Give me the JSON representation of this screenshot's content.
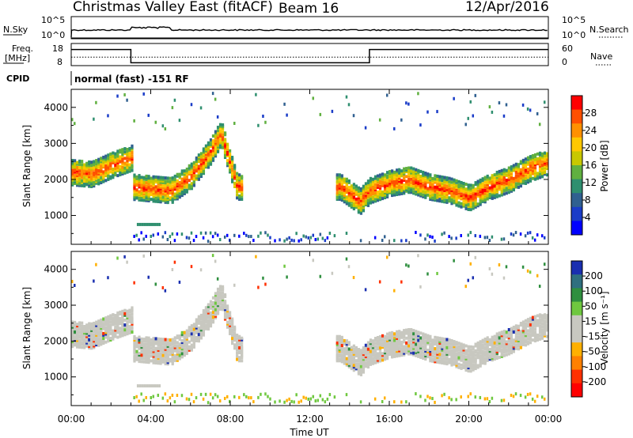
{
  "header": {
    "title": "Christmas Valley East (fitACF)",
    "beam": "Beam 16",
    "date": "12/Apr/2016"
  },
  "nsky_panel": {
    "left_label": "N.Sky",
    "left_ticks": [
      "10^5",
      "10^0"
    ],
    "right_label": "N.Search",
    "right_ticks": [
      "10^5",
      "10^0"
    ]
  },
  "freq_panel": {
    "left_label_1": "Freq.",
    "left_label_2": "[MHz]",
    "left_ticks": [
      "18",
      "8"
    ],
    "right_label": "Nave",
    "right_ticks": [
      "60",
      "0"
    ]
  },
  "cpid": {
    "label": "CPID",
    "text": "normal (fast) -151 RF"
  },
  "colorbars": {
    "power": {
      "label": "Power [dB]",
      "ticks": [
        "28",
        "24",
        "20",
        "16",
        "12",
        "8",
        "4"
      ],
      "colors": [
        "#ff0000",
        "#ff5000",
        "#ff9000",
        "#ffc800",
        "#c8c800",
        "#60b040",
        "#2f8f6f",
        "#306090",
        "#1a3cc8",
        "#0000ff"
      ]
    },
    "velocity": {
      "label": "Velocity [m s⁻¹]",
      "ticks": [
        "200",
        "100",
        "50",
        "15",
        "-15",
        "-50",
        "-100",
        "-200"
      ],
      "colors": [
        "#1a2fb0",
        "#2f6f7f",
        "#2f8f3f",
        "#6fc83f",
        "#c8c8c0",
        "#c8c8c0",
        "#ffb000",
        "#ff8000",
        "#ff3000",
        "#ff0000"
      ]
    }
  },
  "chart_data": [
    {
      "type": "heatmap",
      "name": "power",
      "ylabel": "Slant Range [km]",
      "xlim": [
        "00:00",
        "24:00"
      ],
      "ylim": [
        200,
        4500
      ],
      "yticks": [
        1000,
        2000,
        3000,
        4000
      ],
      "echo_band_center_km": [
        [
          0.0,
          2200
        ],
        [
          1.0,
          2150
        ],
        [
          2.0,
          2400
        ],
        [
          3.0,
          2600
        ],
        [
          3.01,
          1800
        ],
        [
          4.0,
          1750
        ],
        [
          5.0,
          1700
        ],
        [
          6.0,
          2100
        ],
        [
          7.0,
          2800
        ],
        [
          7.5,
          3300
        ],
        [
          8.3,
          1800
        ],
        [
          13.5,
          1800
        ],
        [
          14.5,
          1400
        ],
        [
          15.0,
          1700
        ],
        [
          16.0,
          1900
        ],
        [
          17.0,
          2000
        ],
        [
          18.0,
          1800
        ],
        [
          19.0,
          1700
        ],
        [
          20.0,
          1500
        ],
        [
          21.0,
          1800
        ],
        [
          22.0,
          2000
        ],
        [
          23.0,
          2300
        ],
        [
          24.0,
          2500
        ]
      ]
    },
    {
      "type": "heatmap",
      "name": "velocity",
      "ylabel": "Slant Range [km]",
      "xlabel": "Time UT",
      "xticks": [
        "00:00",
        "04:00",
        "08:00",
        "12:00",
        "16:00",
        "20:00",
        "00:00"
      ],
      "xlim": [
        "00:00",
        "24:00"
      ],
      "ylim": [
        200,
        4500
      ],
      "yticks": [
        1000,
        2000,
        3000,
        4000
      ]
    },
    {
      "type": "line",
      "name": "frequency",
      "x_hours": [
        0,
        3,
        3,
        15,
        15,
        24
      ],
      "freq_mhz": [
        16,
        16,
        10,
        10,
        16,
        16
      ],
      "nave": [
        20,
        20,
        20,
        20,
        20,
        20
      ]
    }
  ]
}
